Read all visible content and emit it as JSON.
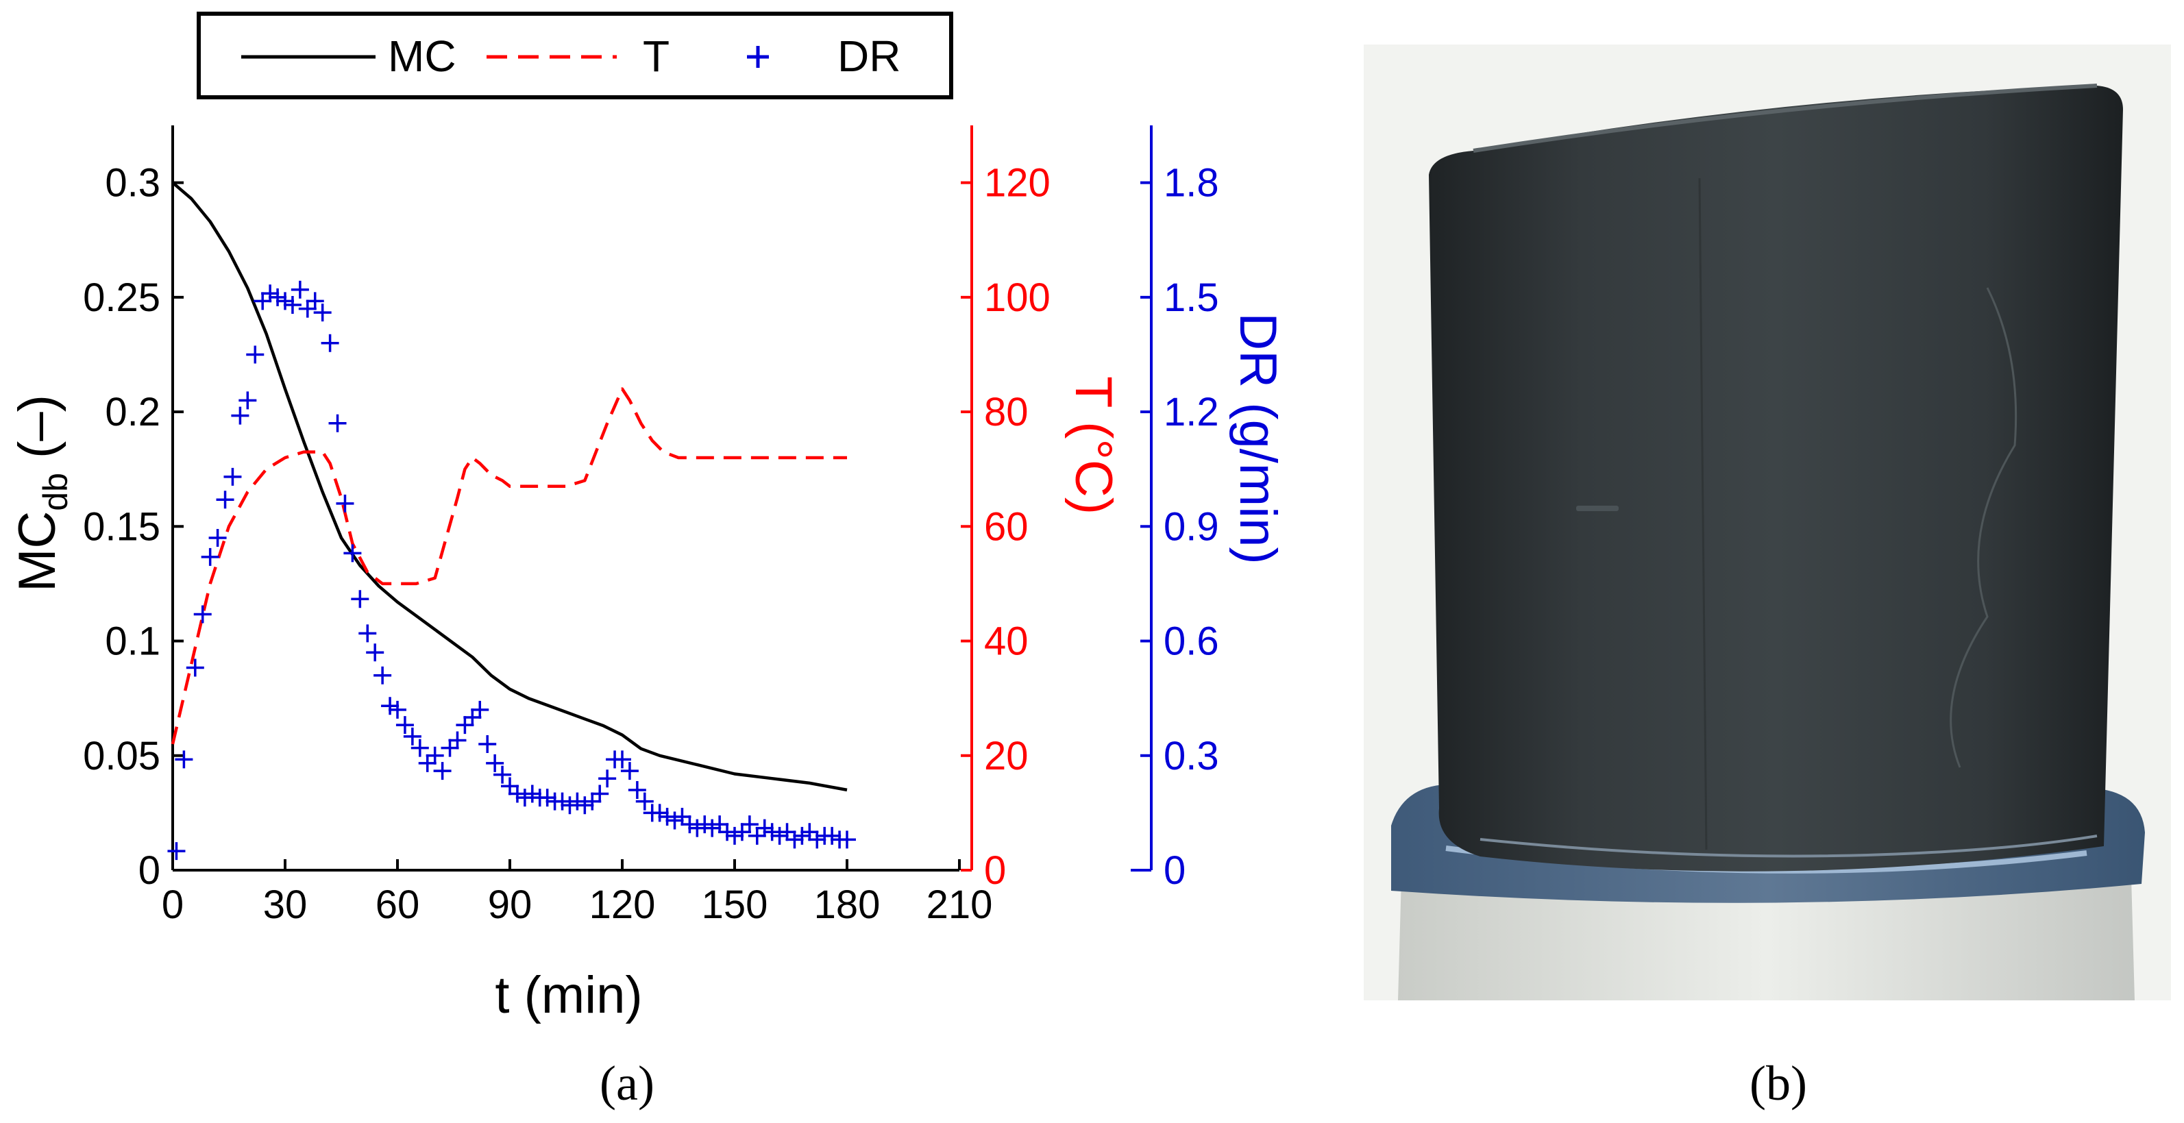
{
  "panel_a": {
    "caption": "(a)",
    "legend": {
      "mc": "MC",
      "t": "T",
      "dr": "DR"
    },
    "xlabel": "t (min)",
    "ylabel_left": {
      "main": "MC",
      "sub": "db",
      "tail": " (–)"
    },
    "ylabel_t": "T (°C)",
    "ylabel_dr": "DR (g/min)",
    "colors": {
      "mc": "#000000",
      "t": "#ff0000",
      "dr": "#0000d8"
    }
  },
  "panel_b": {
    "caption": "(b)"
  },
  "chart_data": {
    "type": "line",
    "title": "",
    "xlabel": "t (min)",
    "x_ticks": [
      0,
      30,
      60,
      90,
      120,
      150,
      180,
      210
    ],
    "xlim": [
      0,
      210
    ],
    "axes": {
      "mc": {
        "label": "MCdb (–)",
        "ylim": [
          0,
          0.325
        ],
        "ticks": [
          "0",
          "0.05",
          "0.1",
          "0.15",
          "0.2",
          "0.25",
          "0.3"
        ]
      },
      "t": {
        "label": "T (°C)",
        "ylim": [
          0,
          130
        ],
        "ticks": [
          "0",
          "20",
          "40",
          "60",
          "80",
          "100",
          "120"
        ]
      },
      "dr": {
        "label": "DR (g/min)",
        "ylim": [
          0,
          1.95
        ],
        "ticks": [
          "0",
          "0.3",
          "0.6",
          "0.9",
          "1.2",
          "1.5",
          "1.8"
        ]
      }
    },
    "legend_position": "top",
    "series": [
      {
        "name": "MC",
        "axis": "mc",
        "style": "solid",
        "x": [
          0,
          5,
          10,
          15,
          20,
          25,
          30,
          35,
          40,
          45,
          50,
          55,
          60,
          65,
          70,
          75,
          80,
          85,
          90,
          95,
          100,
          105,
          110,
          115,
          120,
          125,
          130,
          140,
          150,
          160,
          170,
          180
        ],
        "y": [
          0.3,
          0.293,
          0.283,
          0.27,
          0.254,
          0.234,
          0.21,
          0.187,
          0.165,
          0.145,
          0.133,
          0.124,
          0.117,
          0.111,
          0.105,
          0.099,
          0.093,
          0.085,
          0.079,
          0.075,
          0.072,
          0.069,
          0.066,
          0.063,
          0.059,
          0.053,
          0.05,
          0.046,
          0.042,
          0.04,
          0.038,
          0.035
        ]
      },
      {
        "name": "T",
        "axis": "t",
        "style": "dashed",
        "x": [
          0,
          5,
          10,
          15,
          20,
          25,
          30,
          35,
          38,
          40,
          42,
          45,
          48,
          52,
          56,
          60,
          65,
          70,
          73,
          76,
          78,
          80,
          82,
          85,
          88,
          90,
          95,
          100,
          105,
          110,
          113,
          116,
          118,
          120,
          122,
          125,
          128,
          131,
          135,
          140,
          150,
          160,
          170,
          180
        ],
        "y": [
          22,
          36,
          50,
          60,
          66,
          70,
          72,
          73,
          73,
          73,
          71,
          65,
          57,
          52,
          50,
          50,
          50,
          51,
          58,
          65,
          70,
          72,
          71,
          69,
          68,
          67,
          67,
          67,
          67,
          68,
          73,
          78,
          81,
          84,
          82,
          78,
          75,
          73,
          72,
          72,
          72,
          72,
          72,
          72
        ]
      },
      {
        "name": "DR",
        "axis": "dr",
        "style": "markers",
        "marker": "+",
        "x": [
          1,
          3,
          6,
          8,
          10,
          12,
          14,
          16,
          18,
          20,
          22,
          24,
          26,
          28,
          30,
          32,
          34,
          36,
          38,
          40,
          42,
          44,
          46,
          48,
          50,
          52,
          54,
          56,
          58,
          60,
          62,
          64,
          66,
          68,
          70,
          72,
          74,
          76,
          78,
          80,
          82,
          84,
          86,
          88,
          90,
          92,
          94,
          96,
          98,
          100,
          102,
          104,
          106,
          108,
          110,
          112,
          114,
          116,
          118,
          120,
          122,
          124,
          126,
          128,
          130,
          132,
          134,
          136,
          138,
          140,
          142,
          144,
          146,
          148,
          150,
          152,
          154,
          156,
          158,
          160,
          162,
          164,
          166,
          168,
          170,
          172,
          174,
          176,
          178,
          180
        ],
        "y": [
          0.05,
          0.29,
          0.53,
          0.67,
          0.82,
          0.87,
          0.97,
          1.03,
          1.19,
          1.23,
          1.35,
          1.49,
          1.51,
          1.5,
          1.49,
          1.48,
          1.52,
          1.47,
          1.49,
          1.46,
          1.38,
          1.17,
          0.96,
          0.83,
          0.71,
          0.62,
          0.57,
          0.51,
          0.43,
          0.42,
          0.38,
          0.35,
          0.32,
          0.28,
          0.3,
          0.26,
          0.32,
          0.34,
          0.38,
          0.4,
          0.42,
          0.33,
          0.28,
          0.25,
          0.22,
          0.2,
          0.19,
          0.2,
          0.19,
          0.19,
          0.18,
          0.18,
          0.17,
          0.18,
          0.17,
          0.18,
          0.2,
          0.24,
          0.29,
          0.29,
          0.26,
          0.21,
          0.18,
          0.15,
          0.15,
          0.14,
          0.13,
          0.14,
          0.12,
          0.11,
          0.12,
          0.11,
          0.12,
          0.1,
          0.09,
          0.1,
          0.12,
          0.09,
          0.11,
          0.1,
          0.09,
          0.1,
          0.08,
          0.09,
          0.1,
          0.08,
          0.09,
          0.09,
          0.08,
          0.08
        ]
      }
    ]
  }
}
